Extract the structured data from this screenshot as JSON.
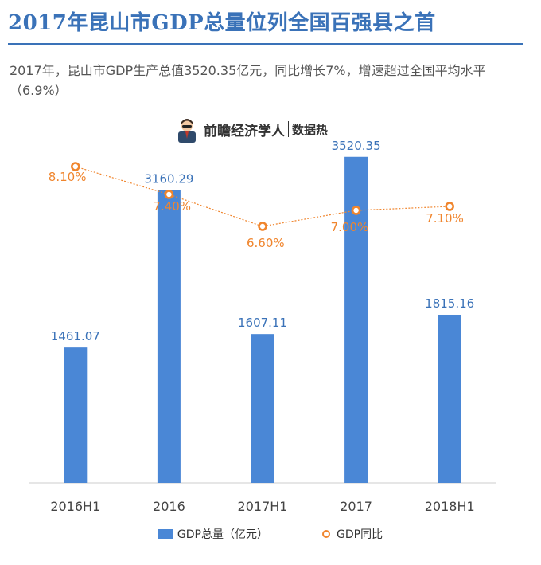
{
  "header": {
    "title": "2017年昆山市GDP总量位列全国百强县之首",
    "subtitle": "2017年，昆山市GDP生产总值3520.35亿元，同比增长7%，增速超过全国平均水平（6.9%）"
  },
  "brand": {
    "name": "前瞻经济学人",
    "tag": "数据热"
  },
  "colors": {
    "bar": "#4a87d6",
    "line": "#f0852d",
    "title": "#3a72b8",
    "bar_label": "#3a72b8"
  },
  "chart_data": {
    "type": "bar",
    "categories": [
      "2016H1",
      "2016",
      "2017H1",
      "2017",
      "2018H1"
    ],
    "series": [
      {
        "name": "GDP总量（亿元）",
        "type": "bar",
        "values": [
          1461.07,
          3160.29,
          1607.11,
          3520.35,
          1815.16
        ],
        "labels": [
          "1461.07",
          "3160.29",
          "1607.11",
          "3520.35",
          "1815.16"
        ]
      },
      {
        "name": "GDP同比",
        "type": "line",
        "values": [
          8.1,
          7.4,
          6.6,
          7.0,
          7.1
        ],
        "labels": [
          "8.10%",
          "7.40%",
          "6.60%",
          "7.00%",
          "7.10%"
        ]
      }
    ],
    "bar_ylim": [
      0,
      4000
    ],
    "line_ylim": [
      0,
      9
    ],
    "grid": false,
    "legend": "bottom"
  }
}
